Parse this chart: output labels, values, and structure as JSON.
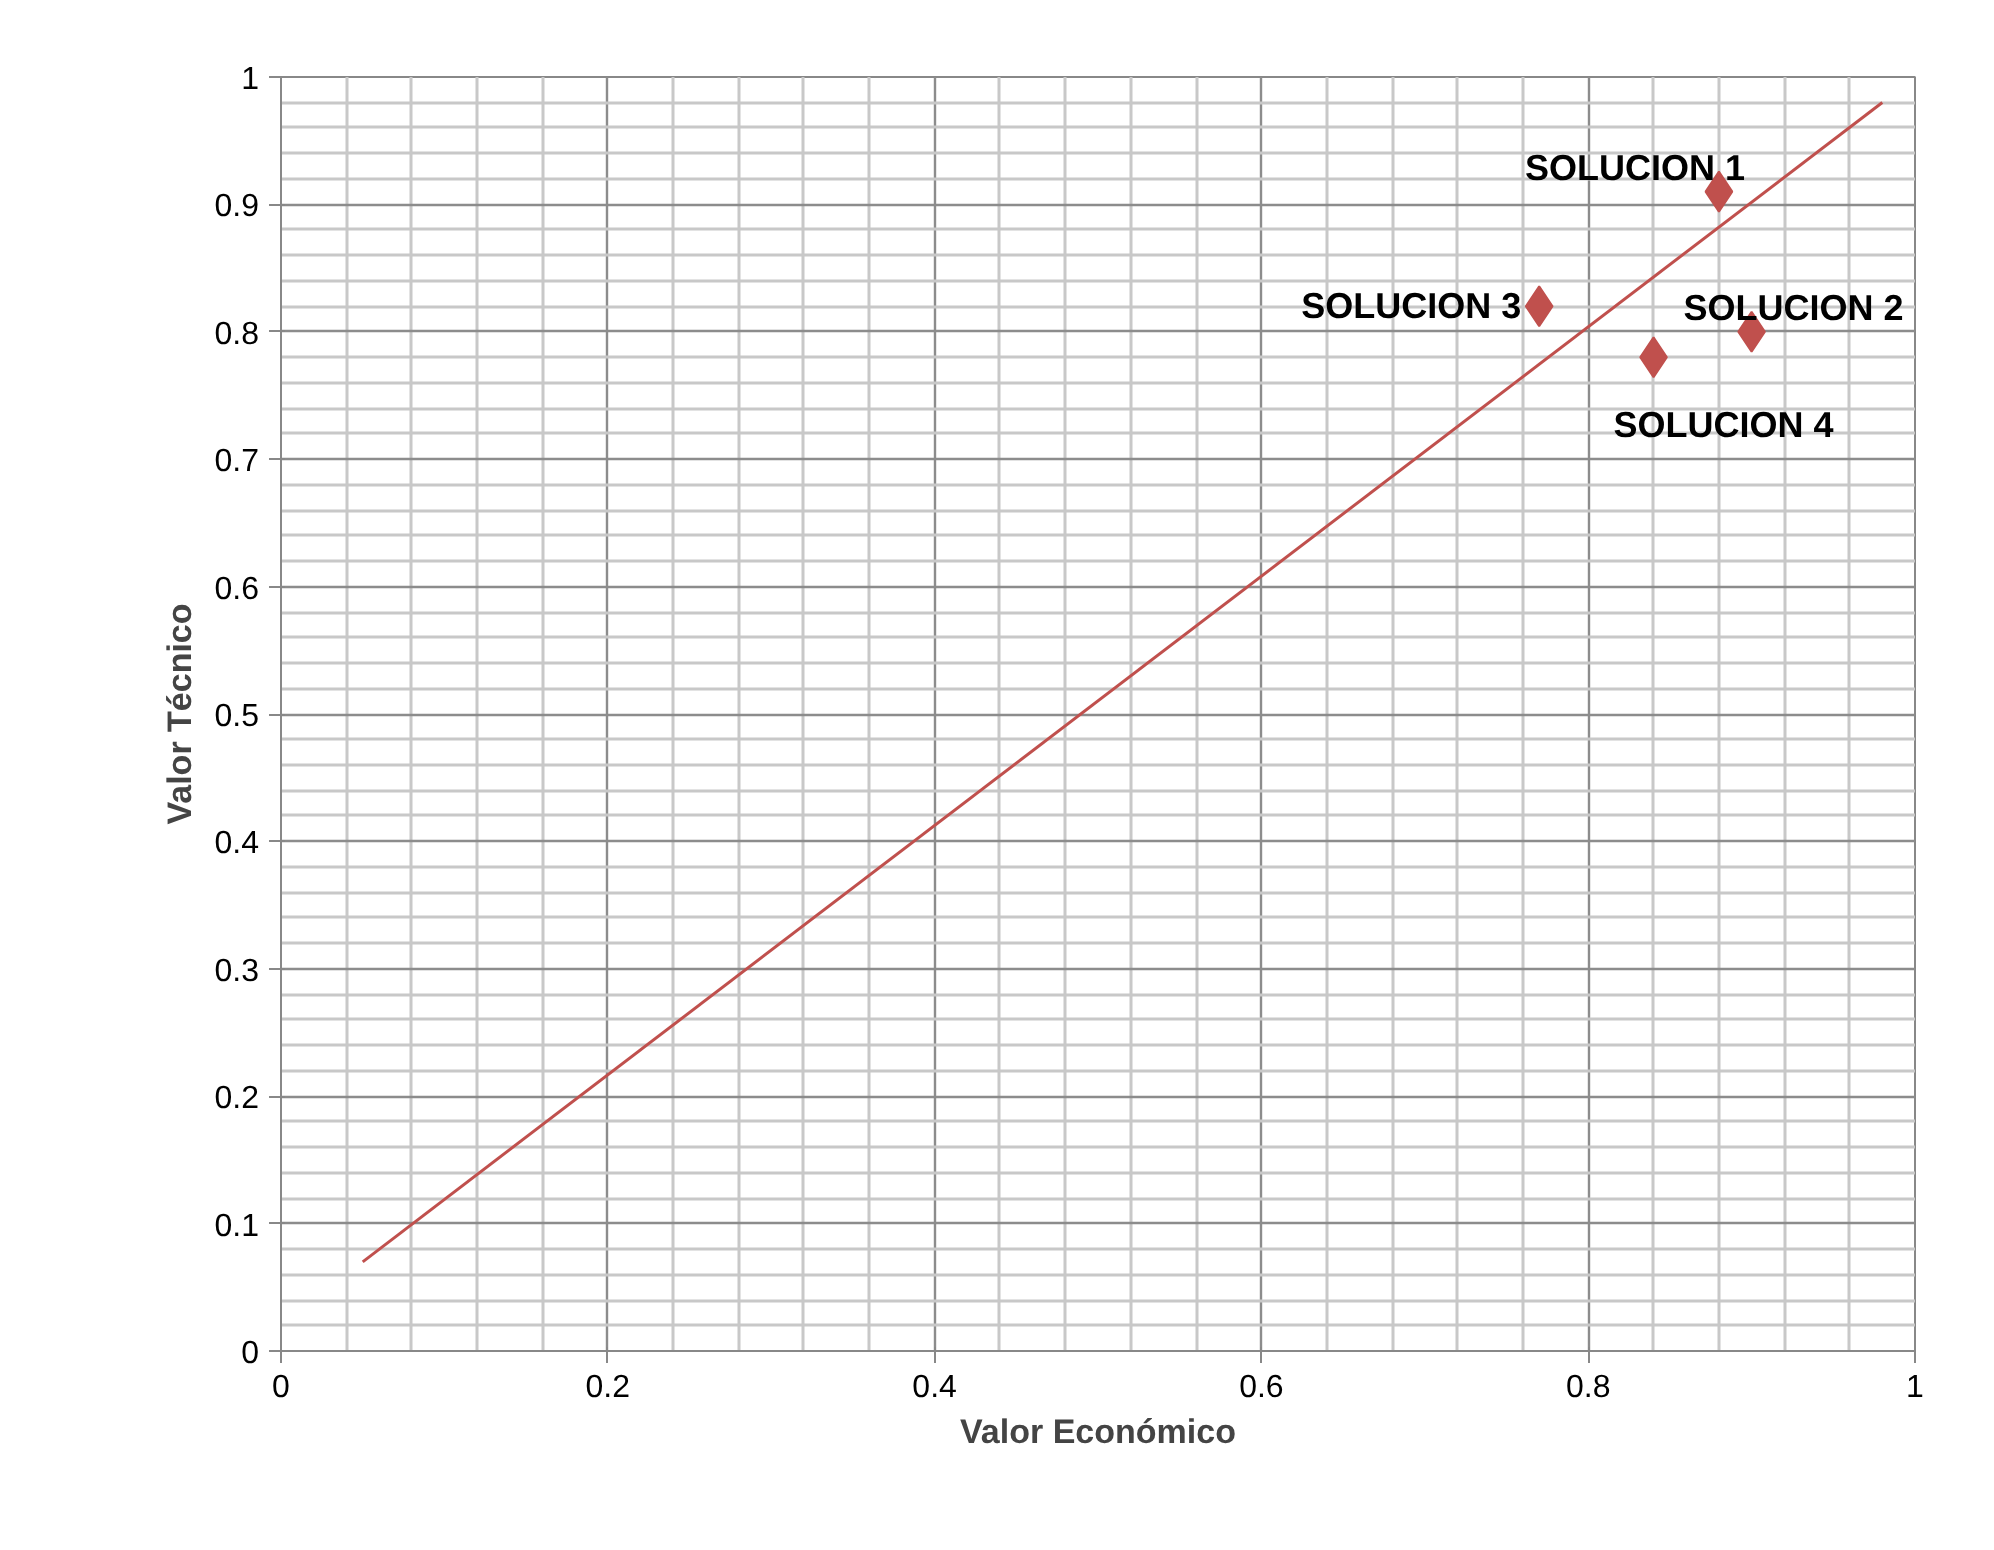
{
  "chart_data": {
    "type": "scatter",
    "xlabel": "Valor Económico",
    "ylabel": "Valor Técnico",
    "series": [
      {
        "color": "#c0504d",
        "marker": "diamond",
        "x": [
          0.88,
          0.9,
          0.77,
          0.84
        ],
        "values": [
          0.91,
          0.8,
          0.82,
          0.78
        ]
      },
      {
        "type": "line",
        "color": "#c0504d",
        "x": [
          0.05,
          0.98
        ],
        "values": [
          0.07,
          0.98
        ]
      }
    ],
    "annotations": [
      {
        "text": "SOLUCION 1",
        "x": 0.88,
        "y": 0.91
      },
      {
        "text": "SOLUCION 2",
        "x": 0.9,
        "y": 0.8
      },
      {
        "text": "SOLUCION 3",
        "x": 0.77,
        "y": 0.82
      },
      {
        "text": "SOLUCION 4",
        "x": 0.84,
        "y": 0.78
      }
    ],
    "xlim": [
      0,
      1
    ],
    "ylim": [
      0,
      1
    ],
    "xticks": [
      0,
      0.2,
      0.4,
      0.6,
      0.8,
      1
    ],
    "yticks": [
      0,
      0.1,
      0.2,
      0.3,
      0.4,
      0.5,
      0.6,
      0.7,
      0.8,
      0.9,
      1
    ],
    "grid": true
  }
}
